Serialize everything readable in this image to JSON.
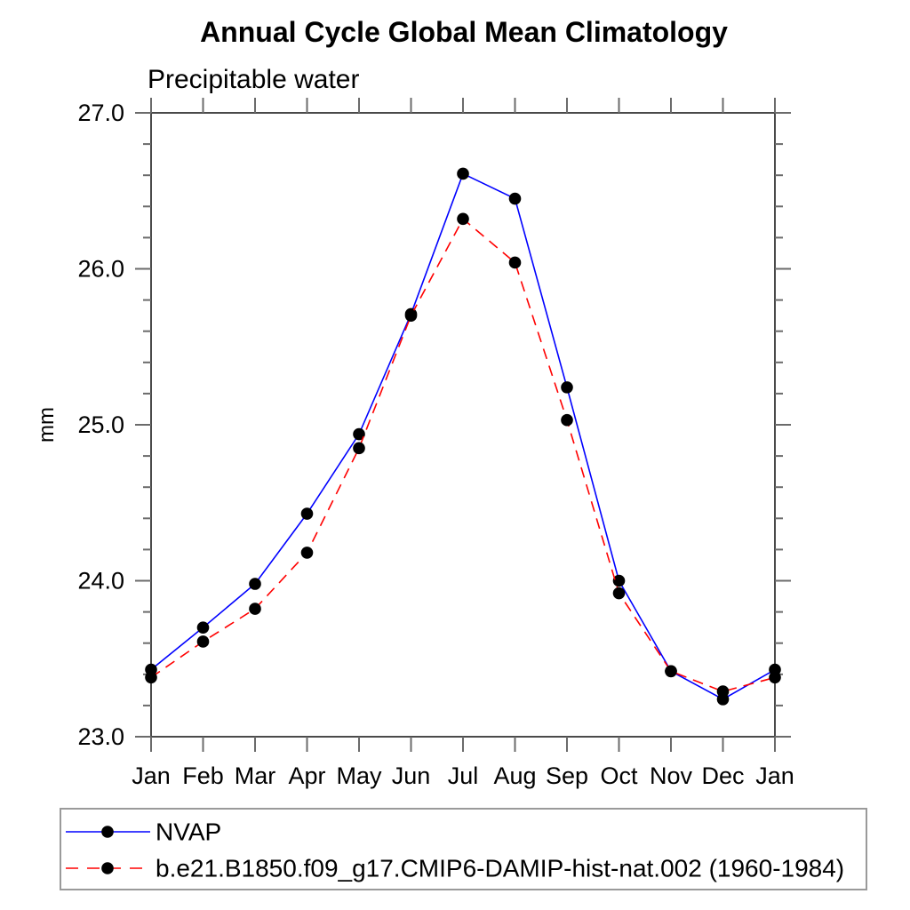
{
  "header": {
    "title": "Annual Cycle Global Mean Climatology",
    "subtitle": "Precipitable water"
  },
  "chart_data": {
    "type": "line",
    "title": "Annual Cycle Global Mean Climatology",
    "subtitle": "Precipitable water",
    "xlabel": "",
    "ylabel": "mm",
    "x_tick_labels": [
      "Jan",
      "Feb",
      "Mar",
      "Apr",
      "May",
      "Jun",
      "Jul",
      "Aug",
      "Sep",
      "Oct",
      "Nov",
      "Dec",
      "Jan"
    ],
    "ylim": [
      23.0,
      27.0
    ],
    "y_major_ticks": [
      23.0,
      24.0,
      25.0,
      26.0,
      27.0
    ],
    "y_major_tick_labels": [
      "23.0",
      "24.0",
      "25.0",
      "26.0",
      "27.0"
    ],
    "y_minor_step": 0.2,
    "grid": false,
    "legend_position": "bottom",
    "axis_color": "#4a4a4a",
    "tick_color": "#6b6b6b",
    "marker_color": "#000000",
    "series": [
      {
        "name": "NVAP",
        "color": "#0000ff",
        "style": "solid",
        "marker": "circle",
        "values": [
          23.43,
          23.7,
          23.98,
          24.43,
          24.94,
          25.71,
          26.61,
          26.45,
          25.24,
          24.0,
          23.42,
          23.24,
          23.43
        ]
      },
      {
        "name": "b.e21.B1850.f09_g17.CMIP6-DAMIP-hist-nat.002 (1960-1984)",
        "color": "#ff0000",
        "style": "dashed",
        "marker": "circle",
        "values": [
          23.38,
          23.61,
          23.82,
          24.18,
          24.85,
          25.7,
          26.32,
          26.04,
          25.03,
          23.92,
          23.42,
          23.29,
          23.38
        ]
      }
    ]
  }
}
